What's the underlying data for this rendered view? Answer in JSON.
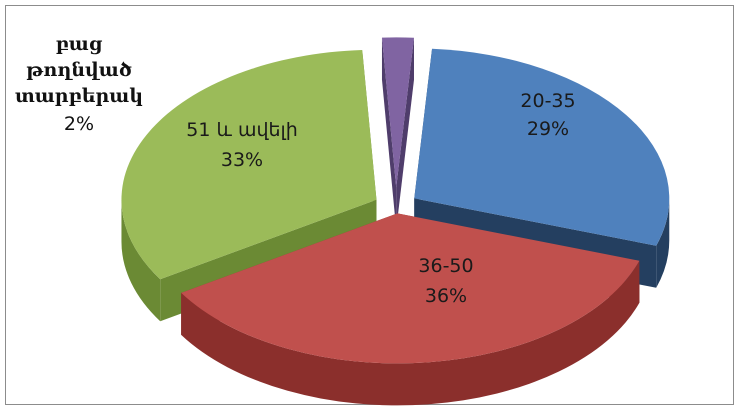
{
  "chart_data": {
    "type": "pie",
    "style": "3d-exploded",
    "slices": [
      {
        "label": "20-35",
        "value": 29,
        "value_label": "29%",
        "color": "#4f81bd",
        "side_color": "#243f60"
      },
      {
        "label": "36-50",
        "value": 36,
        "value_label": "36%",
        "color": "#c0504d",
        "side_color": "#8b2f2c"
      },
      {
        "label": "51 և ավելի",
        "value": 33,
        "value_label": "33%",
        "color": "#9bbb59",
        "side_color": "#6b8a34"
      },
      {
        "label_lines": [
          "բաց",
          "թողնված",
          "տարբերակ"
        ],
        "value": 2,
        "value_label": "2%",
        "color": "#8064a2",
        "side_color": "#4f3d6b"
      }
    ]
  }
}
